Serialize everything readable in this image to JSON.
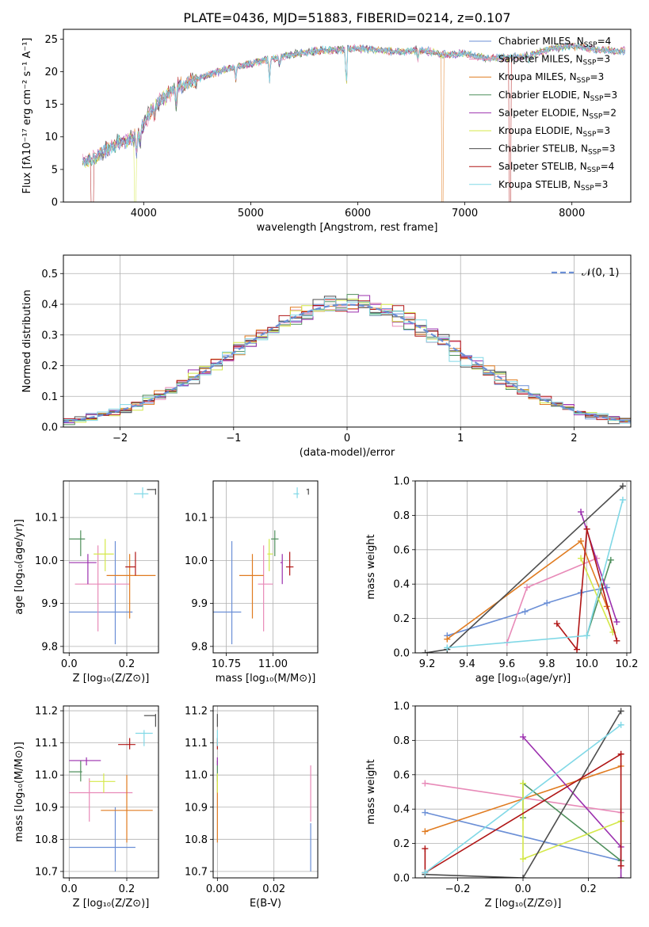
{
  "figure": {
    "title": "PLATE=0436, MJD=51883, FIBERID=0214, z=0.107"
  },
  "models": [
    {
      "name": "Chabrier MILES",
      "nssp": "4",
      "color": "#6b8fd6"
    },
    {
      "name": "Salpeter MILES",
      "nssp": "3",
      "color": "#e88ab8"
    },
    {
      "name": "Kroupa MILES",
      "nssp": "3",
      "color": "#e07b20"
    },
    {
      "name": "Chabrier ELODIE",
      "nssp": "3",
      "color": "#4f8f5c"
    },
    {
      "name": "Salpeter ELODIE",
      "nssp": "2",
      "color": "#9b2fae"
    },
    {
      "name": "Kroupa ELODIE",
      "nssp": "3",
      "color": "#d4e84a"
    },
    {
      "name": "Chabrier STELIB",
      "nssp": "3",
      "color": "#4d4d4d"
    },
    {
      "name": "Salpeter STELIB",
      "nssp": "4",
      "color": "#b01515"
    },
    {
      "name": "Kroupa STELIB",
      "nssp": "3",
      "color": "#80d8e6"
    }
  ],
  "chart_data": [
    {
      "id": "spectrum",
      "type": "line",
      "xlabel": "wavelength [Angstrom, rest frame]",
      "ylabel": "Flux [fλ10⁻¹⁷ erg cm⁻² s⁻¹ A⁻¹]",
      "xlim": [
        3250,
        8550
      ],
      "ylim": [
        0,
        26.5
      ],
      "xticks": [
        4000,
        5000,
        6000,
        7000,
        8000
      ],
      "yticks": [
        0,
        5,
        10,
        15,
        20,
        25
      ],
      "grid": false,
      "legend": "top-right",
      "x": [
        3450,
        3550,
        3700,
        3850,
        3950,
        4050,
        4150,
        4300,
        4450,
        4600,
        4800,
        5000,
        5200,
        5400,
        5600,
        5800,
        6000,
        6200,
        6400,
        6600,
        6800,
        7000,
        7200,
        7400,
        7600,
        7800,
        8000,
        8200,
        8400
      ],
      "y": [
        6.2,
        6.8,
        8.5,
        9.5,
        10.5,
        13.5,
        15.5,
        17.5,
        18.5,
        19.5,
        20.5,
        21.2,
        22.0,
        22.7,
        23.2,
        23.3,
        23.6,
        23.3,
        23.1,
        23.3,
        22.6,
        22.8,
        22.0,
        22.2,
        22.5,
        23.5,
        24.0,
        23.5,
        23.2
      ],
      "dips": [
        {
          "model": "Salpeter STELIB",
          "x": 3520
        },
        {
          "model": "Kroupa ELODIE",
          "x": 3920
        },
        {
          "model": "Kroupa MILES",
          "x": 6790
        },
        {
          "model": "Salpeter STELIB",
          "x": 7420
        }
      ]
    },
    {
      "id": "residuals",
      "type": "histogram",
      "xlabel": "(data-model)/error",
      "ylabel": "Normed distribution",
      "xlim": [
        -2.5,
        2.5
      ],
      "ylim": [
        0,
        0.56
      ],
      "xticks": [
        -2,
        -1,
        0,
        1,
        2
      ],
      "yticks": [
        0.0,
        0.1,
        0.2,
        0.3,
        0.4,
        0.5
      ],
      "grid": true,
      "legend": "top-right",
      "legend_label": "𝒩(0, 1)",
      "bin_width": 0.1,
      "reference": "standard normal"
    },
    {
      "id": "age-vs-Z",
      "type": "scatter",
      "xlabel": "Z [log₁₀(Z/Z⊙)]",
      "ylabel": "age  [log₁₀(age/yr)]",
      "xlim": [
        -0.02,
        0.31
      ],
      "ylim": [
        9.785,
        10.185
      ],
      "xticks": [
        0.0,
        0.2
      ],
      "yticks": [
        9.8,
        9.9,
        10.0,
        10.1
      ],
      "grid": true,
      "points": [
        {
          "model": "Chabrier MILES",
          "x": 0.16,
          "y": 9.88,
          "xerr": [
            0.16,
            0.06
          ],
          "yerr": [
            0.075,
            0.165
          ]
        },
        {
          "model": "Salpeter MILES",
          "x": 0.1,
          "y": 9.945,
          "xerr": [
            0.08,
            0.11
          ],
          "yerr": [
            0.11,
            0.09
          ]
        },
        {
          "model": "Kroupa MILES",
          "x": 0.21,
          "y": 9.965,
          "xerr": [
            0.08,
            0.09
          ],
          "yerr": [
            0.1,
            0.05
          ]
        },
        {
          "model": "Chabrier ELODIE",
          "x": 0.04,
          "y": 10.05,
          "xerr": [
            0.04,
            0.015
          ],
          "yerr": [
            0.04,
            0.02
          ]
        },
        {
          "model": "Salpeter ELODIE",
          "x": 0.065,
          "y": 9.995,
          "xerr": [
            0.065,
            0.03
          ],
          "yerr": [
            0.05,
            0.02
          ]
        },
        {
          "model": "Kroupa ELODIE",
          "x": 0.125,
          "y": 10.015,
          "xerr": [
            0.04,
            0.03
          ],
          "yerr": [
            0.04,
            0.035
          ]
        },
        {
          "model": "Chabrier STELIB",
          "x": 0.3,
          "y": 10.165,
          "xerr": [
            0.03,
            0.0
          ],
          "yerr": [
            0.012,
            0.002
          ]
        },
        {
          "model": "Salpeter STELIB",
          "x": 0.23,
          "y": 9.985,
          "xerr": [
            0.035,
            0.0
          ],
          "yerr": [
            0.02,
            0.035
          ]
        },
        {
          "model": "Kroupa STELIB",
          "x": 0.255,
          "y": 10.155,
          "xerr": [
            0.03,
            0.02
          ],
          "yerr": [
            0.01,
            0.015
          ]
        }
      ]
    },
    {
      "id": "age-vs-mass",
      "type": "scatter",
      "xlabel": "mass [log₁₀(M/M⊙)]",
      "ylabel": "",
      "xlim": [
        10.68,
        11.24
      ],
      "ylim": [
        9.785,
        10.185
      ],
      "xticks": [
        10.75,
        11.0
      ],
      "yticks": [
        9.8,
        9.9,
        10.0,
        10.1
      ],
      "grid": true,
      "points": [
        {
          "model": "Chabrier MILES",
          "x": 10.78,
          "y": 9.88,
          "xerr": [
            0.1,
            0.05
          ],
          "yerr": [
            0.075,
            0.165
          ]
        },
        {
          "model": "Salpeter MILES",
          "x": 10.95,
          "y": 9.945,
          "xerr": [
            0.03,
            0.05
          ],
          "yerr": [
            0.11,
            0.09
          ]
        },
        {
          "model": "Kroupa MILES",
          "x": 10.89,
          "y": 9.965,
          "xerr": [
            0.07,
            0.06
          ],
          "yerr": [
            0.1,
            0.05
          ]
        },
        {
          "model": "Chabrier ELODIE",
          "x": 11.01,
          "y": 10.05,
          "xerr": [
            0.02,
            0.02
          ],
          "yerr": [
            0.04,
            0.02
          ]
        },
        {
          "model": "Salpeter ELODIE",
          "x": 11.05,
          "y": 9.995,
          "xerr": [
            0.01,
            0.0
          ],
          "yerr": [
            0.05,
            0.02
          ]
        },
        {
          "model": "Kroupa ELODIE",
          "x": 10.98,
          "y": 10.015,
          "xerr": [
            0.01,
            0.02
          ],
          "yerr": [
            0.04,
            0.035
          ]
        },
        {
          "model": "Chabrier STELIB",
          "x": 11.19,
          "y": 10.165,
          "xerr": [
            0.01,
            0.0
          ],
          "yerr": [
            0.012,
            0.002
          ]
        },
        {
          "model": "Salpeter STELIB",
          "x": 11.09,
          "y": 9.985,
          "xerr": [
            0.02,
            0.02
          ],
          "yerr": [
            0.02,
            0.035
          ]
        },
        {
          "model": "Kroupa STELIB",
          "x": 11.13,
          "y": 10.155,
          "xerr": [
            0.02,
            0.01
          ],
          "yerr": [
            0.01,
            0.015
          ]
        }
      ]
    },
    {
      "id": "weight-vs-age",
      "type": "line",
      "xlabel": "age  [log₁₀(age/yr)]",
      "ylabel": "mass weight",
      "xlim": [
        9.14,
        10.22
      ],
      "ylim": [
        0,
        1.0
      ],
      "xticks": [
        9.2,
        9.4,
        9.6,
        9.8,
        10.0,
        10.2
      ],
      "yticks": [
        0.0,
        0.2,
        0.4,
        0.6,
        0.8,
        1.0
      ],
      "grid": true,
      "series": [
        {
          "model": "Chabrier MILES",
          "x": [
            9.3,
            9.69,
            9.8,
            9.97,
            10.1
          ],
          "y": [
            0.1,
            0.24,
            0.29,
            0.35,
            0.38
          ]
        },
        {
          "model": "Salpeter MILES",
          "x": [
            9.6,
            9.7,
            10.05
          ],
          "y": [
            0.06,
            0.38,
            0.55
          ]
        },
        {
          "model": "Kroupa MILES",
          "x": [
            9.3,
            9.97,
            10.1
          ],
          "y": [
            0.08,
            0.65,
            0.27
          ]
        },
        {
          "model": "Chabrier ELODIE",
          "x": [
            10.0,
            10.12
          ],
          "y": [
            0.1,
            0.54
          ]
        },
        {
          "model": "Salpeter ELODIE",
          "x": [
            9.97,
            10.15
          ],
          "y": [
            0.82,
            0.18
          ]
        },
        {
          "model": "Kroupa ELODIE",
          "x": [
            9.97,
            10.13
          ],
          "y": [
            0.55,
            0.12
          ]
        },
        {
          "model": "Chabrier STELIB",
          "x": [
            9.19,
            9.3,
            10.18
          ],
          "y": [
            0.0,
            0.02,
            0.97
          ]
        },
        {
          "model": "Salpeter STELIB",
          "x": [
            9.85,
            9.95,
            10.0,
            10.15
          ],
          "y": [
            0.17,
            0.02,
            0.72,
            0.07
          ]
        },
        {
          "model": "Kroupa STELIB",
          "x": [
            9.3,
            10.0,
            10.18
          ],
          "y": [
            0.03,
            0.1,
            0.89
          ]
        }
      ]
    },
    {
      "id": "mass-vs-Z",
      "type": "scatter",
      "xlabel": "Z [log₁₀(Z/Z⊙)]",
      "ylabel": "mass [log₁₀(M/M⊙)]",
      "xlim": [
        -0.02,
        0.31
      ],
      "ylim": [
        10.68,
        11.215
      ],
      "xticks": [
        0.0,
        0.2
      ],
      "yticks": [
        10.7,
        10.8,
        10.9,
        11.0,
        11.1,
        11.2
      ],
      "grid": true,
      "points": [
        {
          "model": "Chabrier MILES",
          "x": 0.16,
          "y": 10.775,
          "xerr": [
            0.16,
            0.07
          ],
          "yerr": [
            0.075,
            0.125
          ]
        },
        {
          "model": "Salpeter MILES",
          "x": 0.07,
          "y": 10.945,
          "xerr": [
            0.07,
            0.15
          ],
          "yerr": [
            0.09,
            0.045
          ]
        },
        {
          "model": "Kroupa MILES",
          "x": 0.2,
          "y": 10.89,
          "xerr": [
            0.09,
            0.09
          ],
          "yerr": [
            0.1,
            0.11
          ]
        },
        {
          "model": "Chabrier ELODIE",
          "x": 0.04,
          "y": 11.01,
          "xerr": [
            0.04,
            0.005
          ],
          "yerr": [
            0.03,
            0.035
          ]
        },
        {
          "model": "Salpeter ELODIE",
          "x": 0.06,
          "y": 11.045,
          "xerr": [
            0.06,
            0.05
          ],
          "yerr": [
            0.015,
            0.01
          ]
        },
        {
          "model": "Kroupa ELODIE",
          "x": 0.12,
          "y": 10.98,
          "xerr": [
            0.05,
            0.04
          ],
          "yerr": [
            0.035,
            0.025
          ]
        },
        {
          "model": "Chabrier STELIB",
          "x": 0.3,
          "y": 11.185,
          "xerr": [
            0.04,
            0.0
          ],
          "yerr": [
            0.035,
            0.005
          ]
        },
        {
          "model": "Salpeter STELIB",
          "x": 0.21,
          "y": 11.095,
          "xerr": [
            0.04,
            0.02
          ],
          "yerr": [
            0.015,
            0.02
          ]
        },
        {
          "model": "Kroupa STELIB",
          "x": 0.26,
          "y": 11.13,
          "xerr": [
            0.03,
            0.03
          ],
          "yerr": [
            0.04,
            0.01
          ]
        }
      ]
    },
    {
      "id": "mass-vs-EBV",
      "type": "scatter",
      "xlabel": "E(B-V)",
      "ylabel": "",
      "xlim": [
        -0.0015,
        0.0355
      ],
      "ylim": [
        10.68,
        11.215
      ],
      "xticks": [
        0.0,
        0.02
      ],
      "yticks": [
        10.7,
        10.8,
        10.9,
        11.0,
        11.1,
        11.2
      ],
      "grid": true,
      "points": [
        {
          "model": "Chabrier MILES",
          "x": 0.033,
          "y": 10.775,
          "xerr": [
            0.0,
            0.0
          ],
          "yerr": [
            0.075,
            0.075
          ]
        },
        {
          "model": "Salpeter MILES",
          "x": 0.033,
          "y": 10.945,
          "xerr": [
            0.0,
            0.0
          ],
          "yerr": [
            0.09,
            0.085
          ]
        },
        {
          "model": "Kroupa MILES",
          "x": 0.0,
          "y": 10.89,
          "xerr": [
            0.0,
            0.0
          ],
          "yerr": [
            0.1,
            0.11
          ]
        },
        {
          "model": "Chabrier ELODIE",
          "x": 0.0,
          "y": 11.01,
          "xerr": [
            0.0,
            0.0
          ],
          "yerr": [
            0.03,
            0.035
          ]
        },
        {
          "model": "Salpeter ELODIE",
          "x": 0.0,
          "y": 11.045,
          "xerr": [
            0.0,
            0.0
          ],
          "yerr": [
            0.015,
            0.01
          ]
        },
        {
          "model": "Kroupa ELODIE",
          "x": 0.0,
          "y": 10.98,
          "xerr": [
            0.0,
            0.0
          ],
          "yerr": [
            0.035,
            0.025
          ]
        },
        {
          "model": "Chabrier STELIB",
          "x": 0.0,
          "y": 11.185,
          "xerr": [
            0.0,
            0.0
          ],
          "yerr": [
            0.035,
            0.005
          ]
        },
        {
          "model": "Salpeter STELIB",
          "x": 0.0,
          "y": 11.095,
          "xerr": [
            0.0,
            0.0
          ],
          "yerr": [
            0.015,
            0.02
          ]
        },
        {
          "model": "Kroupa STELIB",
          "x": 0.0,
          "y": 11.13,
          "xerr": [
            0.0,
            0.0
          ],
          "yerr": [
            0.04,
            0.01
          ]
        }
      ]
    },
    {
      "id": "weight-vs-Z",
      "type": "line",
      "xlabel": "Z [log₁₀(Z/Z⊙)]",
      "ylabel": "mass weight",
      "xlim": [
        -0.33,
        0.33
      ],
      "ylim": [
        0,
        1.0
      ],
      "xticks": [
        -0.2,
        0.0,
        0.2
      ],
      "yticks": [
        0.0,
        0.2,
        0.4,
        0.6,
        0.8,
        1.0
      ],
      "grid": true,
      "series": [
        {
          "model": "Chabrier MILES",
          "x": [
            -0.3,
            0.3
          ],
          "y": [
            0.38,
            0.1
          ]
        },
        {
          "model": "Salpeter MILES",
          "x": [
            -0.3,
            0.3
          ],
          "y": [
            0.55,
            0.38
          ]
        },
        {
          "model": "Kroupa MILES",
          "x": [
            -0.3,
            0.3
          ],
          "y": [
            0.27,
            0.65
          ]
        },
        {
          "model": "Chabrier ELODIE",
          "x": [
            0.0,
            0.0,
            0.3
          ],
          "y": [
            0.35,
            0.55,
            0.1
          ]
        },
        {
          "model": "Salpeter ELODIE",
          "x": [
            0.0,
            0.3,
            0.3
          ],
          "y": [
            0.82,
            0.18,
            0.0
          ]
        },
        {
          "model": "Kroupa ELODIE",
          "x": [
            0.0,
            0.0,
            0.3
          ],
          "y": [
            0.55,
            0.11,
            0.33
          ]
        },
        {
          "model": "Chabrier STELIB",
          "x": [
            -0.3,
            0.0,
            0.3
          ],
          "y": [
            0.02,
            0.0,
            0.97
          ]
        },
        {
          "model": "Salpeter STELIB",
          "x": [
            -0.3,
            -0.3,
            0.3,
            0.3
          ],
          "y": [
            0.17,
            0.03,
            0.72,
            0.07
          ]
        },
        {
          "model": "Kroupa STELIB",
          "x": [
            -0.3,
            0.3
          ],
          "y": [
            0.03,
            0.89
          ]
        }
      ]
    }
  ]
}
